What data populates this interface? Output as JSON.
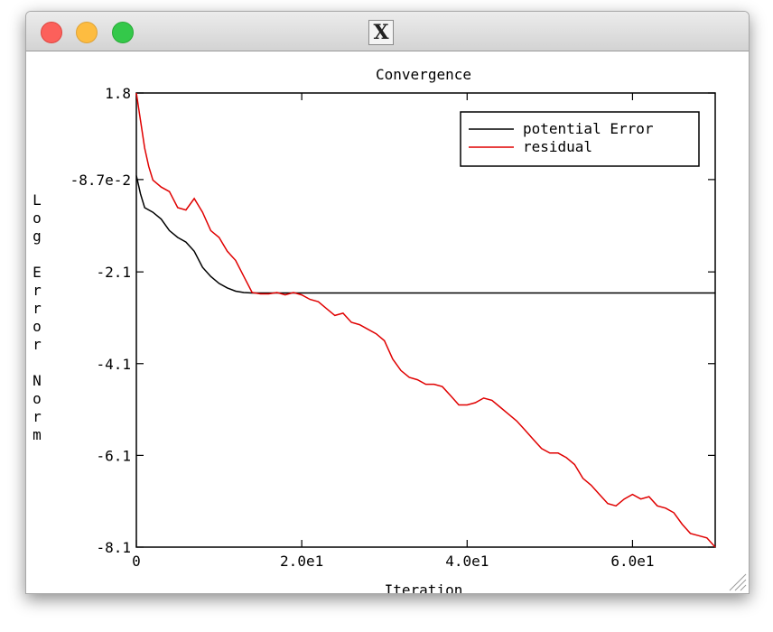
{
  "window": {
    "title_icon": "x11-icon",
    "buttons": [
      "close",
      "minimize",
      "zoom"
    ]
  },
  "chart_data": {
    "type": "line",
    "title": "Convergence",
    "xlabel": "Iteration",
    "ylabel": "Log Error Norm",
    "xlim": [
      0,
      70
    ],
    "ylim": [
      -8.1,
      1.8
    ],
    "xticks": [
      {
        "value": 0,
        "label": "0"
      },
      {
        "value": 20,
        "label": "2.0e1"
      },
      {
        "value": 40,
        "label": "4.0e1"
      },
      {
        "value": 60,
        "label": "6.0e1"
      }
    ],
    "yticks": [
      {
        "value": 1.8,
        "label": "1.8"
      },
      {
        "value": -0.087,
        "label": "-8.7e-2"
      },
      {
        "value": -2.1,
        "label": "-2.1"
      },
      {
        "value": -4.1,
        "label": "-4.1"
      },
      {
        "value": -6.1,
        "label": "-6.1"
      },
      {
        "value": -8.1,
        "label": "-8.1"
      }
    ],
    "grid": false,
    "legend_position": "top-right",
    "series": [
      {
        "name": "potential Error",
        "color": "#000000",
        "x": [
          0,
          0.5,
          1,
          2,
          3,
          4,
          5,
          6,
          7,
          8,
          9,
          10,
          11,
          12,
          13,
          14,
          15,
          20,
          30,
          40,
          50,
          60,
          70
        ],
        "y": [
          0.0,
          -0.4,
          -0.7,
          -0.8,
          -0.95,
          -1.2,
          -1.35,
          -1.45,
          -1.65,
          -2.0,
          -2.2,
          -2.35,
          -2.45,
          -2.52,
          -2.55,
          -2.56,
          -2.56,
          -2.56,
          -2.56,
          -2.56,
          -2.56,
          -2.56,
          -2.56
        ]
      },
      {
        "name": "residual",
        "color": "#e00000",
        "x": [
          0,
          0.5,
          1,
          1.5,
          2,
          3,
          4,
          5,
          6,
          7,
          8,
          9,
          10,
          11,
          12,
          13,
          14,
          15,
          16,
          17,
          18,
          19,
          20,
          21,
          22,
          23,
          24,
          25,
          26,
          27,
          28,
          29,
          30,
          31,
          32,
          33,
          34,
          35,
          36,
          37,
          38,
          39,
          40,
          41,
          42,
          43,
          44,
          45,
          46,
          47,
          48,
          49,
          50,
          51,
          52,
          53,
          54,
          55,
          56,
          57,
          58,
          59,
          60,
          61,
          62,
          63,
          64,
          65,
          66,
          67,
          68,
          69,
          70
        ],
        "y": [
          1.8,
          1.2,
          0.6,
          0.2,
          -0.1,
          -0.25,
          -0.35,
          -0.7,
          -0.75,
          -0.5,
          -0.8,
          -1.2,
          -1.35,
          -1.65,
          -1.85,
          -2.2,
          -2.55,
          -2.58,
          -2.58,
          -2.55,
          -2.6,
          -2.55,
          -2.6,
          -2.7,
          -2.75,
          -2.9,
          -3.05,
          -3.0,
          -3.2,
          -3.25,
          -3.35,
          -3.45,
          -3.6,
          -4.0,
          -4.25,
          -4.4,
          -4.45,
          -4.55,
          -4.55,
          -4.6,
          -4.8,
          -5.0,
          -5.0,
          -4.95,
          -4.85,
          -4.9,
          -5.05,
          -5.2,
          -5.35,
          -5.55,
          -5.75,
          -5.95,
          -6.05,
          -6.05,
          -6.15,
          -6.3,
          -6.6,
          -6.75,
          -6.95,
          -7.15,
          -7.2,
          -7.05,
          -6.95,
          -7.05,
          -7.0,
          -7.2,
          -7.25,
          -7.35,
          -7.6,
          -7.8,
          -7.85,
          -7.9,
          -8.1
        ]
      }
    ]
  }
}
